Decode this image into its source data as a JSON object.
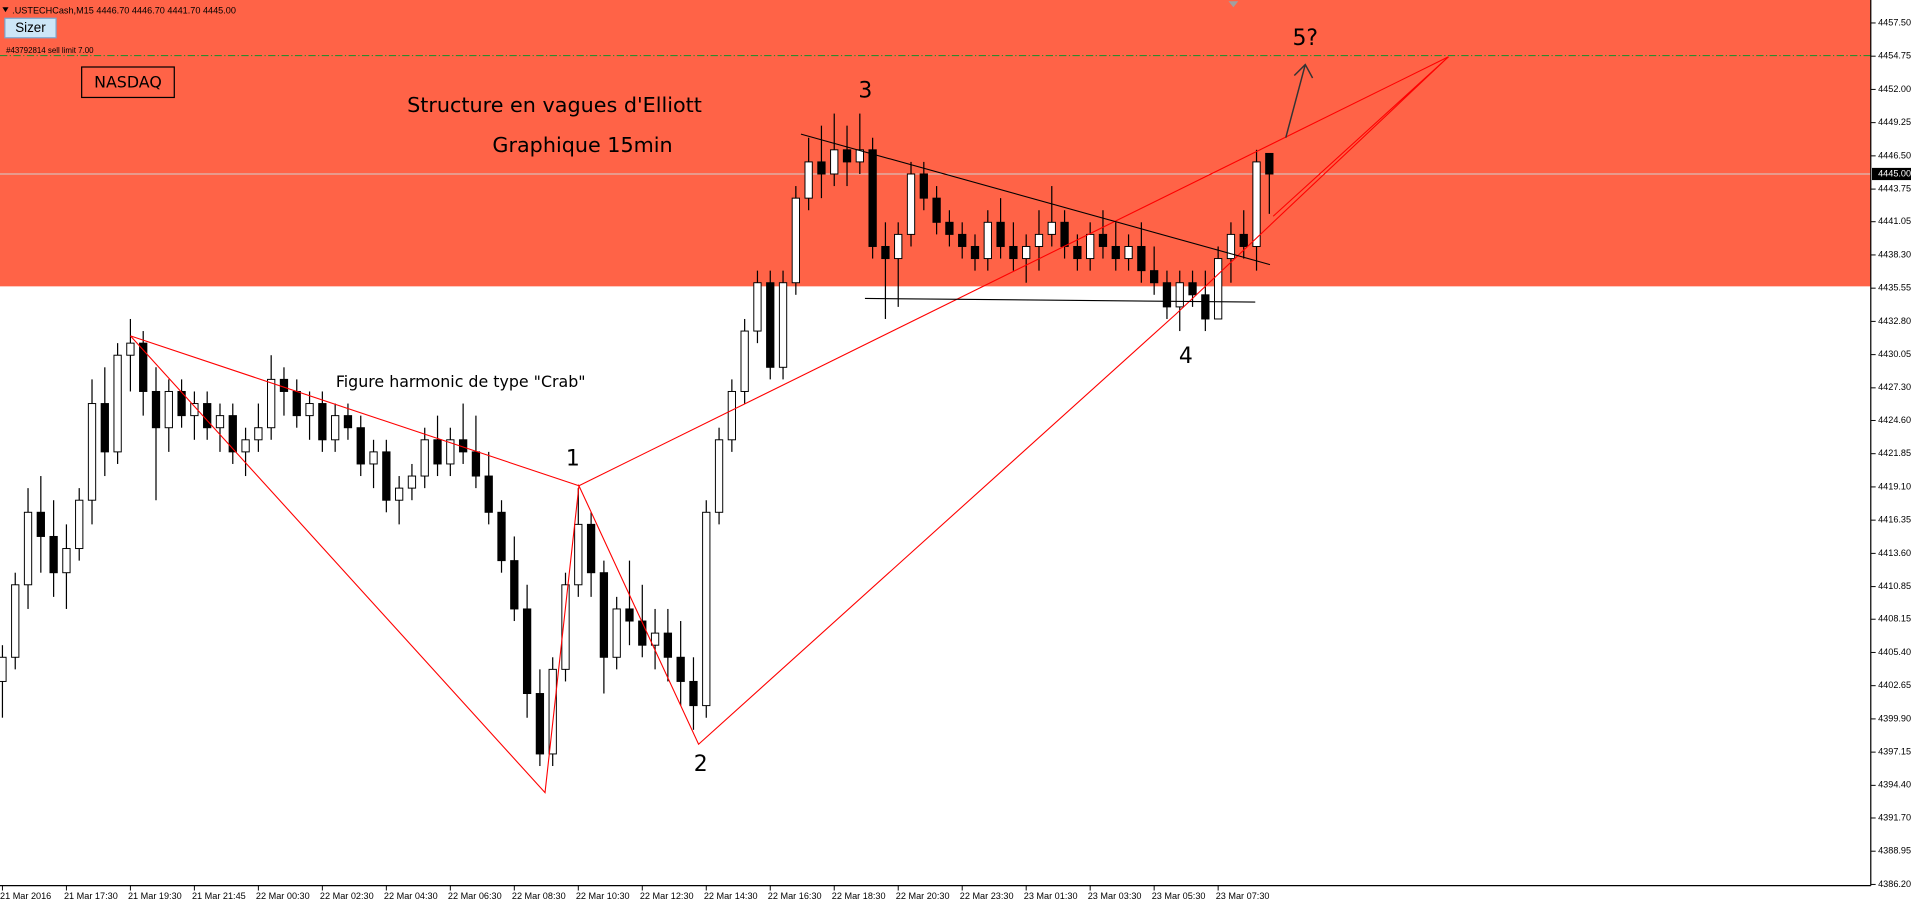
{
  "header": ".USTECHCash,M15  4446.70 4446.70 4441.70 4445.00",
  "sizer_button": "Sizer",
  "chart_data": {
    "type": "candlestick",
    "title": "Structure en vagues d'Elliott",
    "subtitle": "Graphique 15min",
    "badge": "NASDAQ",
    "pattern_label": "Figure harmonic de type \"Crab\"",
    "wave_labels": [
      "1",
      "2",
      "3",
      "4",
      "5?"
    ],
    "categories": [
      "21 Mar 2016",
      null,
      null,
      null,
      null,
      "21 Mar 17:30",
      null,
      null,
      null,
      null,
      "21 Mar 19:30",
      null,
      null,
      null,
      null,
      "21 Mar 21:45",
      null,
      null,
      null,
      null,
      "22 Mar 00:30",
      null,
      null,
      null,
      null,
      "22 Mar 02:30",
      null,
      null,
      null,
      null,
      "22 Mar 04:30",
      null,
      null,
      null,
      null,
      "22 Mar 06:30",
      null,
      null,
      null,
      null,
      "22 Mar 08:30",
      null,
      null,
      null,
      null,
      "22 Mar 10:30",
      null,
      null,
      null,
      null,
      "22 Mar 12:30",
      null,
      null,
      null,
      null,
      "22 Mar 14:30",
      null,
      null,
      null,
      null,
      "22 Mar 16:30",
      null,
      null,
      null,
      null,
      "22 Mar 18:30",
      null,
      null,
      null,
      null,
      "22 Mar 20:30",
      null,
      null,
      null,
      null,
      "22 Mar 23:30",
      null,
      null,
      null,
      null,
      "23 Mar 01:30",
      null,
      null,
      null,
      null,
      "23 Mar 03:30",
      null,
      null,
      null,
      null,
      "23 Mar 05:30",
      null,
      null,
      null,
      null,
      "23 Mar 07:30",
      null,
      null,
      null,
      null
    ],
    "open": [
      4403,
      4405,
      4411,
      4417,
      4415,
      4412,
      4414,
      4418,
      4426,
      4422,
      4430,
      4431,
      4427,
      4424,
      4427,
      4425,
      4426,
      4424,
      4425,
      4422,
      4423,
      4424,
      4428,
      4427,
      4425,
      4426,
      4423,
      4425,
      4424,
      4421,
      4422,
      4418,
      4419,
      4420,
      4423,
      4421,
      4423,
      4422,
      4420,
      4417,
      4413,
      4409,
      4402,
      4397,
      4404,
      4411,
      4416,
      4412,
      4405,
      4409,
      4408,
      4406,
      4407,
      4405,
      4403,
      4401,
      4417,
      4423,
      4427,
      4432,
      4436,
      4429,
      4436,
      4443,
      4446,
      4445,
      4447,
      4446,
      4447,
      4439,
      4438,
      4440,
      4445,
      4443,
      4441,
      4440,
      4439,
      4438,
      4441,
      4439,
      4438,
      4439,
      4440,
      4441,
      4439,
      4438,
      4440,
      4439,
      4438,
      4439,
      4437,
      4436,
      4434,
      4436,
      4435,
      4433,
      4438,
      4440,
      4439,
      4446.7
    ],
    "high": [
      4406,
      4412,
      4419,
      4420,
      4418,
      4416,
      4419,
      4428,
      4429,
      4431,
      4433,
      4432,
      4429,
      4428,
      4428,
      4427,
      4427,
      4426,
      4426,
      4424,
      4426,
      4430,
      4429,
      4428,
      4427,
      4427,
      4426,
      4426,
      4425,
      4423,
      4423,
      4420,
      4421,
      4424,
      4425,
      4424,
      4426,
      4425,
      4422,
      4418,
      4415,
      4411,
      4404,
      4405,
      4412,
      4419,
      4417,
      4413,
      4410,
      4413,
      4411,
      4409,
      4409,
      4408,
      4405,
      4418,
      4424,
      4428,
      4433,
      4437,
      4437,
      4437,
      4444,
      4448,
      4449,
      4450,
      4449,
      4450,
      4448,
      4441,
      4441,
      4446,
      4446,
      4444,
      4442,
      4441,
      4440,
      4442,
      4443,
      4441,
      4440,
      4442,
      4444,
      4442,
      4440,
      4441,
      4442,
      4441,
      4440,
      4441,
      4439,
      4437,
      4437,
      4437,
      4437,
      4439,
      4441,
      4442,
      4447,
      4446.7
    ],
    "low": [
      4400,
      4404,
      4409,
      4412,
      4410,
      4409,
      4413,
      4416,
      4420,
      4421,
      4427,
      4425,
      4418,
      4422,
      4424,
      4423,
      4423,
      4422,
      4421,
      4420,
      4422,
      4423,
      4425,
      4424,
      4423,
      4422,
      4422,
      4423,
      4420,
      4419,
      4417,
      4416,
      4418,
      4419,
      4420,
      4420,
      4421,
      4419,
      4416,
      4412,
      4408,
      4400,
      4396,
      4396,
      4403,
      4410,
      4410,
      4402,
      4404,
      4406,
      4405,
      4404,
      4403,
      4401,
      4399,
      4400,
      4416,
      4422,
      4426,
      4431,
      4428,
      4428,
      4435,
      4442,
      4443,
      4444,
      4444,
      4445,
      4438,
      4433,
      4434,
      4439,
      4442,
      4440,
      4439,
      4438,
      4437,
      4437,
      4438,
      4437,
      4436,
      4437,
      4439,
      4438,
      4437,
      4437,
      4438,
      4437,
      4437,
      4436,
      4435,
      4433,
      4432,
      4434,
      4432,
      4433,
      4436,
      4438,
      4437,
      4441.7
    ],
    "close": [
      4405,
      4411,
      4417,
      4415,
      4412,
      4414,
      4418,
      4426,
      4422,
      4430,
      4431,
      4427,
      4424,
      4427,
      4425,
      4426,
      4424,
      4425,
      4422,
      4423,
      4424,
      4428,
      4427,
      4425,
      4426,
      4423,
      4425,
      4424,
      4421,
      4422,
      4418,
      4419,
      4420,
      4423,
      4421,
      4423,
      4422,
      4420,
      4417,
      4413,
      4409,
      4402,
      4397,
      4404,
      4411,
      4416,
      4412,
      4405,
      4409,
      4408,
      4406,
      4407,
      4405,
      4403,
      4401,
      4417,
      4423,
      4427,
      4432,
      4436,
      4429,
      4436,
      4443,
      4446,
      4445,
      4447,
      4446,
      4447,
      4439,
      4438,
      4440,
      4445,
      4443,
      4441,
      4440,
      4439,
      4438,
      4441,
      4439,
      4438,
      4439,
      4440,
      4441,
      4439,
      4438,
      4440,
      4439,
      4438,
      4439,
      4437,
      4436,
      4434,
      4436,
      4435,
      4433,
      4438,
      4440,
      4439,
      4446,
      4445
    ],
    "up_color": "#ffffff",
    "down_color": "#000000",
    "ylim": [
      4386.1,
      4459.4
    ],
    "yticks": [
      {
        "value": 4386.2,
        "label": "4386.20"
      },
      {
        "value": 4388.95,
        "label": "4388.95"
      },
      {
        "value": 4391.7,
        "label": "4391.70"
      },
      {
        "value": 4394.4,
        "label": "4394.40"
      },
      {
        "value": 4397.15,
        "label": "4397.15"
      },
      {
        "value": 4399.9,
        "label": "4399.90"
      },
      {
        "value": 4402.65,
        "label": "4402.65"
      },
      {
        "value": 4405.4,
        "label": "4405.40"
      },
      {
        "value": 4408.15,
        "label": "4408.15"
      },
      {
        "value": 4410.85,
        "label": "4410.85"
      },
      {
        "value": 4413.6,
        "label": "4413.60"
      },
      {
        "value": 4416.35,
        "label": "4416.35"
      },
      {
        "value": 4419.1,
        "label": "4419.10"
      },
      {
        "value": 4421.85,
        "label": "4421.85"
      },
      {
        "value": 4424.6,
        "label": "4424.60"
      },
      {
        "value": 4427.3,
        "label": "4427.30"
      },
      {
        "value": 4430.05,
        "label": "4430.05"
      },
      {
        "value": 4432.8,
        "label": "4432.80"
      },
      {
        "value": 4435.55,
        "label": "4435.55"
      },
      {
        "value": 4438.3,
        "label": "4438.30"
      },
      {
        "value": 4441.05,
        "label": "4441.05"
      },
      {
        "value": 4443.75,
        "label": "4443.75"
      },
      {
        "value": 4446.5,
        "label": "4446.50"
      },
      {
        "value": 4449.25,
        "label": "4449.25"
      },
      {
        "value": 4452,
        "label": "4452.00"
      },
      {
        "value": 4454.75,
        "label": "4454.75"
      },
      {
        "value": 4457.5,
        "label": "4457.50"
      }
    ],
    "zone": {
      "low": 4435.7,
      "color": "#ff6347"
    },
    "order_line": {
      "value": 4454.8,
      "label": "#43792814 sell limit 7.00",
      "color": "#2e8b2e"
    },
    "last_price": {
      "value": 4445,
      "label": "4445.00"
    },
    "lines": [
      {
        "color": "#ff0000",
        "points": [
          [
            10,
            4431.6
          ],
          [
            45.05,
            4419.2
          ]
        ]
      },
      {
        "color": "#ff0000",
        "points": [
          [
            10,
            4431.6
          ],
          [
            42.4,
            4393.8
          ],
          [
            45.05,
            4419.2
          ],
          [
            54.4,
            4397.8
          ],
          [
            91.7,
            4433.4
          ],
          [
            113,
            4454.7
          ],
          [
            99.3,
            4441.5
          ]
        ]
      },
      {
        "color": "#ff0000",
        "points": [
          [
            45.05,
            4419.2
          ],
          [
            113,
            4454.7
          ]
        ]
      },
      {
        "color": "#000000",
        "points": [
          [
            62.4,
            4448.3
          ],
          [
            99.05,
            4437.5
          ]
        ]
      },
      {
        "color": "#000000",
        "points": [
          [
            67.4,
            4434.7
          ],
          [
            97.9,
            4434.4
          ]
        ]
      }
    ]
  }
}
